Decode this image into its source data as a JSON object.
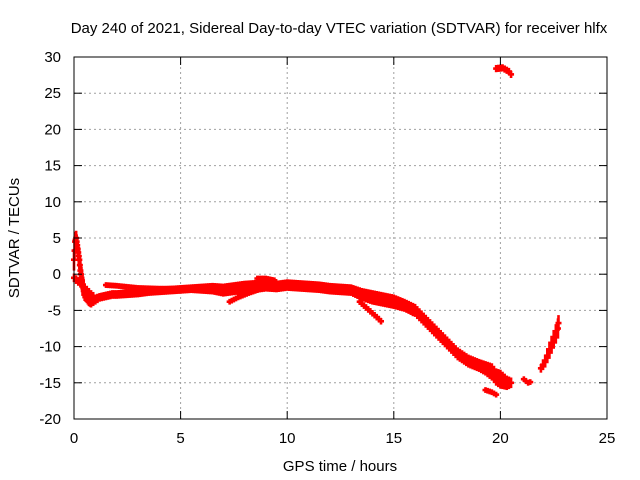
{
  "chart_data": {
    "type": "scatter",
    "title": "Day 240 of 2021, Sidereal Day-to-day VTEC variation (SDTVAR) for receiver hlfx",
    "xlabel": "GPS time / hours",
    "ylabel": "SDTVAR / TECUs",
    "xlim": [
      0,
      25
    ],
    "ylim": [
      -20,
      30
    ],
    "xticks": [
      0,
      5,
      10,
      15,
      20,
      25
    ],
    "yticks": [
      -20,
      -15,
      -10,
      -5,
      0,
      5,
      10,
      15,
      20,
      25,
      30
    ],
    "grid": true,
    "series_color": "#ff0000",
    "series": [
      {
        "name": "SDTVAR",
        "bands": [
          {
            "x": [
              0.0,
              0.05,
              0.1,
              0.15,
              0.2,
              0.25,
              0.3,
              0.35,
              0.4,
              0.5,
              0.6,
              0.7,
              0.8,
              1.0,
              1.2,
              1.5,
              1.8,
              2.0,
              2.5,
              3.0,
              3.5,
              4.0,
              4.5,
              5.0,
              5.5,
              6.0,
              6.5,
              7.0,
              7.5,
              8.0,
              8.5,
              9.0,
              9.5,
              10.0,
              10.5,
              11.0,
              11.5,
              12.0,
              12.5,
              13.0,
              13.5,
              14.0,
              14.5,
              15.0,
              15.5,
              16.0,
              16.5,
              17.0,
              17.5,
              18.0,
              18.5,
              19.0,
              19.3,
              19.6,
              19.8,
              20.0,
              20.3,
              20.6
            ],
            "y": [
              2.0,
              4.5,
              5.0,
              4.0,
              3.0,
              2.0,
              0.5,
              -0.5,
              -1.5,
              -2.5,
              -3.0,
              -3.5,
              -3.8,
              -3.5,
              -3.2,
              -3.0,
              -2.8,
              -2.8,
              -2.7,
              -2.6,
              -2.4,
              -2.3,
              -2.2,
              -2.1,
              -2.0,
              -2.0,
              -2.0,
              -2.2,
              -2.0,
              -1.8,
              -1.7,
              -1.6,
              -1.7,
              -1.5,
              -1.6,
              -1.7,
              -1.8,
              -2.0,
              -2.1,
              -2.2,
              -2.8,
              -3.2,
              -3.5,
              -3.8,
              -4.3,
              -5.0,
              -6.5,
              -8.0,
              -9.5,
              -11.0,
              -12.0,
              -12.6,
              -13.0,
              -13.5,
              -14.2,
              -14.5,
              -15.0,
              -15.0
            ],
            "hw": [
              1.5,
              1.2,
              1.0,
              1.0,
              1.2,
              1.3,
              1.4,
              1.5,
              1.5,
              1.2,
              1.0,
              0.9,
              0.8,
              0.7,
              0.6,
              0.6,
              0.6,
              0.6,
              0.6,
              0.6,
              0.6,
              0.6,
              0.6,
              0.6,
              0.6,
              0.7,
              0.8,
              0.9,
              0.9,
              0.9,
              0.9,
              0.8,
              0.8,
              0.8,
              0.8,
              0.8,
              0.8,
              0.8,
              0.8,
              0.8,
              0.9,
              1.0,
              1.0,
              1.0,
              0.9,
              0.9,
              0.9,
              0.9,
              0.9,
              0.9,
              0.9,
              0.9,
              1.0,
              1.2,
              1.2,
              1.3,
              1.0,
              0.6
            ]
          },
          {
            "x": [
              0.0,
              0.2,
              0.4,
              0.6,
              0.8,
              1.0
            ],
            "y": [
              -0.5,
              -1.0,
              -1.5,
              -2.2,
              -2.8,
              -3.2
            ],
            "hw": [
              0.6,
              0.6,
              0.6,
              0.6,
              0.6,
              0.5
            ]
          },
          {
            "x": [
              1.5,
              2.0,
              3.0,
              4.0,
              5.0,
              6.0,
              6.7
            ],
            "y": [
              -1.5,
              -1.6,
              -1.9,
              -2.0,
              -2.0,
              -2.1,
              -2.2
            ],
            "hw": [
              0.4,
              0.4,
              0.4,
              0.4,
              0.4,
              0.4,
              0.4
            ]
          },
          {
            "x": [
              7.3,
              7.7,
              8.2,
              8.7
            ],
            "y": [
              -3.8,
              -3.2,
              -2.6,
              -2.1
            ],
            "hw": [
              0.4,
              0.4,
              0.4,
              0.4
            ]
          },
          {
            "x": [
              8.6,
              9.0,
              9.5
            ],
            "y": [
              -0.6,
              -0.6,
              -0.9
            ],
            "hw": [
              0.4,
              0.4,
              0.4
            ]
          },
          {
            "x": [
              13.4,
              13.7,
              14.0,
              14.3,
              14.5
            ],
            "y": [
              -3.8,
              -4.6,
              -5.4,
              -6.2,
              -6.8
            ],
            "hw": [
              0.45,
              0.45,
              0.45,
              0.45,
              0.45
            ]
          },
          {
            "x": [
              14.8,
              15.1,
              15.4,
              15.7,
              16.0
            ],
            "y": [
              -3.3,
              -3.9,
              -4.4,
              -5.0,
              -5.6
            ],
            "hw": [
              0.4,
              0.4,
              0.4,
              0.4,
              0.4
            ]
          },
          {
            "x": [
              19.3,
              19.6,
              19.9
            ],
            "y": [
              -16.0,
              -16.3,
              -16.8
            ],
            "hw": [
              0.4,
              0.4,
              0.4
            ]
          },
          {
            "x": [
              19.8,
              20.1,
              20.4,
              20.6
            ],
            "y": [
              28.4,
              28.5,
              28.0,
              27.2
            ],
            "hw": [
              0.5,
              0.5,
              0.5,
              0.5
            ]
          },
          {
            "x": [
              21.1,
              21.3,
              21.5
            ],
            "y": [
              -14.5,
              -15.0,
              -14.8
            ],
            "hw": [
              0.4,
              0.4,
              0.4
            ]
          },
          {
            "x": [
              21.9,
              22.1,
              22.3,
              22.5,
              22.7,
              22.75
            ],
            "y": [
              -13.0,
              -12.0,
              -10.5,
              -9.0,
              -7.5,
              -6.0
            ],
            "hw": [
              0.6,
              0.9,
              1.2,
              1.3,
              1.4,
              0.8
            ]
          }
        ]
      }
    ]
  }
}
